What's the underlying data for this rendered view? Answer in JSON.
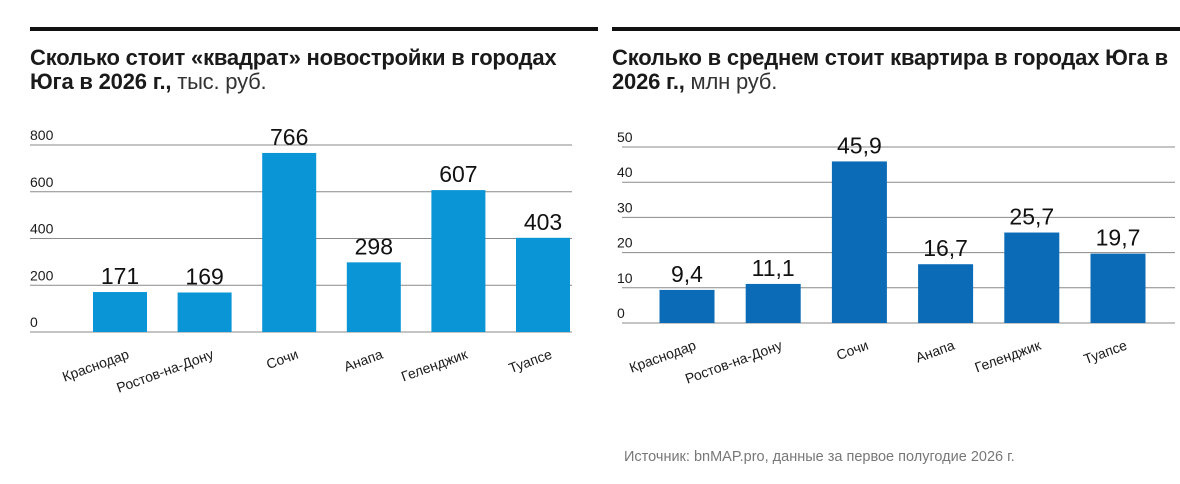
{
  "source": "Источник: bnMAP.pro, данные за первое полугодие 2026 г.",
  "chart_data": [
    {
      "type": "bar",
      "title_bold": "Сколько стоит «квадрат» новостройки в городах Юга в 2026 г.,",
      "title_unit": " тыс. руб.",
      "categories": [
        "Краснодар",
        "Ростов-на-Дону",
        "Сочи",
        "Анапа",
        "Геленджик",
        "Туапсе"
      ],
      "values": [
        171,
        169,
        766,
        298,
        607,
        403
      ],
      "value_labels": [
        "171",
        "169",
        "766",
        "298",
        "607",
        "403"
      ],
      "yticks": [
        "0",
        "200",
        "400",
        "600",
        "800"
      ],
      "ylim": [
        0,
        800
      ],
      "grid": true,
      "bar_color": "#0a95d6"
    },
    {
      "type": "bar",
      "title_bold": "Сколько в среднем стоит квартира в городах Юга в 2026 г.,",
      "title_unit": " млн руб.",
      "categories": [
        "Краснодар",
        "Ростов-на-Дону",
        "Сочи",
        "Анапа",
        "Геленджик",
        "Туапсе"
      ],
      "values": [
        9.4,
        11.1,
        45.9,
        16.7,
        25.7,
        19.7
      ],
      "value_labels": [
        "9,4",
        "11,1",
        "45,9",
        "16,7",
        "25,7",
        "19,7"
      ],
      "yticks": [
        "0",
        "10",
        "20",
        "30",
        "40",
        "50"
      ],
      "ylim": [
        0,
        50
      ],
      "grid": true,
      "bar_color": "#0b6bb6"
    }
  ]
}
